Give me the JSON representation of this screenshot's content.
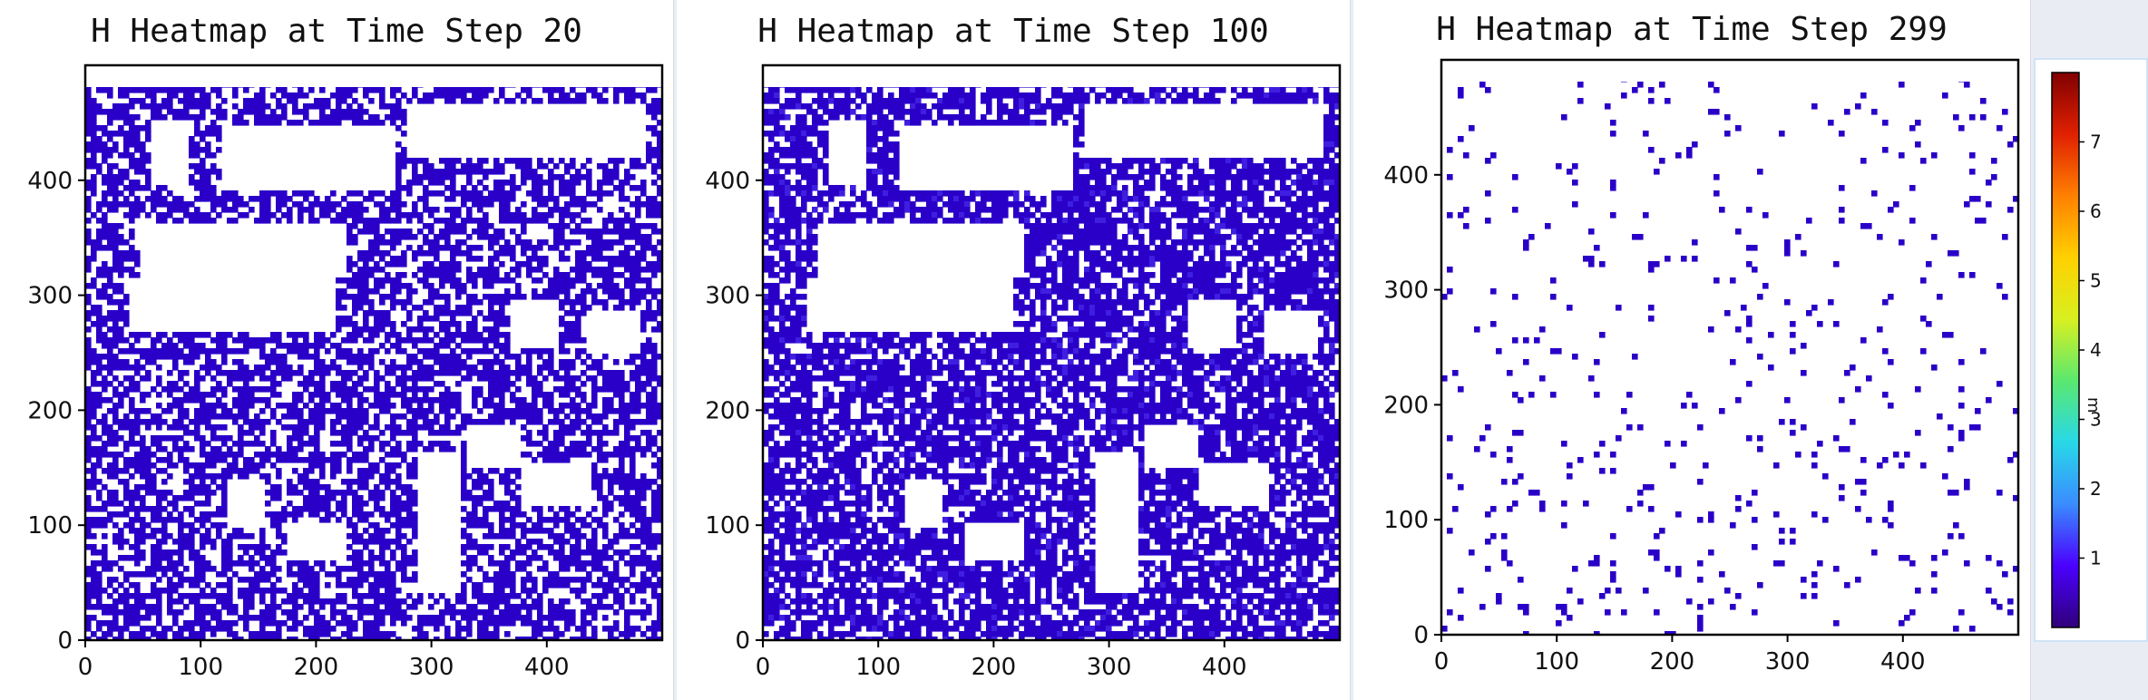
{
  "chart_data": [
    {
      "type": "heatmap",
      "title": "H Heatmap at Time Step 20",
      "xlim": [
        0,
        500
      ],
      "ylim": [
        0,
        500
      ],
      "xticks": [
        0,
        100,
        200,
        300,
        400
      ],
      "yticks": [
        0,
        100,
        200,
        300,
        400
      ],
      "time_step": 20,
      "flooded_fraction": 0.62,
      "dominant_value_m": 0.5
    },
    {
      "type": "heatmap",
      "title": "H Heatmap at Time Step 100",
      "xlim": [
        0,
        500
      ],
      "ylim": [
        0,
        500
      ],
      "xticks": [
        0,
        100,
        200,
        300,
        400
      ],
      "yticks": [
        0,
        100,
        200,
        300,
        400
      ],
      "time_step": 100,
      "flooded_fraction": 0.72,
      "dominant_value_m": 0.6
    },
    {
      "type": "heatmap",
      "title": "H Heatmap at Time Step 299",
      "xlim": [
        0,
        500
      ],
      "ylim": [
        0,
        500
      ],
      "xticks": [
        0,
        100,
        200,
        300,
        400
      ],
      "yticks": [
        0,
        100,
        200,
        300,
        400
      ],
      "time_step": 299,
      "flooded_fraction": 0.04,
      "dominant_value_m": 0.4
    }
  ],
  "colorbar": {
    "label": "m",
    "min": 0,
    "max": 8,
    "ticks": [
      1,
      2,
      3,
      4,
      5,
      6,
      7
    ],
    "colormap": [
      "#30007a",
      "#4a00ff",
      "#3a8cff",
      "#28d8e8",
      "#5ae870",
      "#d8f020",
      "#ffd000",
      "#ff8000",
      "#e02000",
      "#800000"
    ]
  },
  "colors": {
    "water": "#2a00c8",
    "water_deep": "#3f1ee0",
    "dry": "#ffffff",
    "axis": "#000000"
  }
}
